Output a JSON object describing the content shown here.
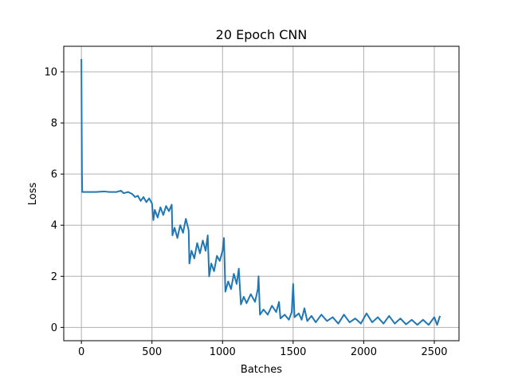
{
  "chart_data": {
    "type": "line",
    "title": "20 Epoch CNN",
    "xlabel": "Batches",
    "ylabel": "Loss",
    "xlim": [
      -125,
      2675
    ],
    "ylim": [
      -0.52,
      11.0
    ],
    "xticks": [
      0,
      500,
      1000,
      1500,
      2000,
      2500
    ],
    "yticks": [
      0,
      2,
      4,
      6,
      8,
      10
    ],
    "grid": true,
    "series_color": "#1f77b4",
    "series": [
      {
        "points": [
          [
            0,
            10.5
          ],
          [
            2,
            8.0
          ],
          [
            4,
            6.0
          ],
          [
            6,
            5.3
          ],
          [
            50,
            5.3
          ],
          [
            100,
            5.3
          ],
          [
            160,
            5.32
          ],
          [
            200,
            5.3
          ],
          [
            250,
            5.3
          ],
          [
            280,
            5.35
          ],
          [
            300,
            5.25
          ],
          [
            330,
            5.3
          ],
          [
            360,
            5.22
          ],
          [
            380,
            5.1
          ],
          [
            400,
            5.15
          ],
          [
            420,
            4.95
          ],
          [
            440,
            5.1
          ],
          [
            460,
            4.9
          ],
          [
            480,
            5.05
          ],
          [
            500,
            4.85
          ],
          [
            510,
            4.2
          ],
          [
            520,
            4.6
          ],
          [
            540,
            4.3
          ],
          [
            560,
            4.7
          ],
          [
            580,
            4.4
          ],
          [
            600,
            4.75
          ],
          [
            620,
            4.55
          ],
          [
            640,
            4.8
          ],
          [
            645,
            3.6
          ],
          [
            660,
            3.9
          ],
          [
            680,
            3.5
          ],
          [
            700,
            4.0
          ],
          [
            720,
            3.7
          ],
          [
            740,
            4.25
          ],
          [
            760,
            3.8
          ],
          [
            765,
            2.5
          ],
          [
            780,
            3.0
          ],
          [
            800,
            2.7
          ],
          [
            820,
            3.3
          ],
          [
            840,
            2.9
          ],
          [
            860,
            3.4
          ],
          [
            880,
            3.0
          ],
          [
            895,
            3.6
          ],
          [
            905,
            2.0
          ],
          [
            920,
            2.5
          ],
          [
            940,
            2.2
          ],
          [
            960,
            2.8
          ],
          [
            980,
            2.6
          ],
          [
            1000,
            3.0
          ],
          [
            1010,
            3.5
          ],
          [
            1020,
            1.4
          ],
          [
            1040,
            1.8
          ],
          [
            1060,
            1.5
          ],
          [
            1080,
            2.1
          ],
          [
            1100,
            1.7
          ],
          [
            1115,
            2.3
          ],
          [
            1130,
            0.9
          ],
          [
            1150,
            1.2
          ],
          [
            1170,
            0.95
          ],
          [
            1200,
            1.3
          ],
          [
            1230,
            1.0
          ],
          [
            1250,
            1.5
          ],
          [
            1255,
            2.0
          ],
          [
            1265,
            0.5
          ],
          [
            1290,
            0.7
          ],
          [
            1320,
            0.5
          ],
          [
            1350,
            0.85
          ],
          [
            1380,
            0.6
          ],
          [
            1400,
            1.0
          ],
          [
            1410,
            0.35
          ],
          [
            1440,
            0.5
          ],
          [
            1470,
            0.3
          ],
          [
            1490,
            0.6
          ],
          [
            1500,
            1.7
          ],
          [
            1510,
            0.4
          ],
          [
            1540,
            0.55
          ],
          [
            1560,
            0.3
          ],
          [
            1580,
            0.75
          ],
          [
            1600,
            0.25
          ],
          [
            1630,
            0.45
          ],
          [
            1660,
            0.2
          ],
          [
            1700,
            0.5
          ],
          [
            1740,
            0.25
          ],
          [
            1780,
            0.4
          ],
          [
            1820,
            0.15
          ],
          [
            1860,
            0.5
          ],
          [
            1900,
            0.2
          ],
          [
            1940,
            0.35
          ],
          [
            1980,
            0.15
          ],
          [
            2020,
            0.55
          ],
          [
            2060,
            0.2
          ],
          [
            2100,
            0.4
          ],
          [
            2140,
            0.15
          ],
          [
            2180,
            0.45
          ],
          [
            2220,
            0.15
          ],
          [
            2260,
            0.35
          ],
          [
            2300,
            0.12
          ],
          [
            2340,
            0.3
          ],
          [
            2380,
            0.1
          ],
          [
            2420,
            0.3
          ],
          [
            2460,
            0.1
          ],
          [
            2500,
            0.4
          ],
          [
            2520,
            0.1
          ],
          [
            2540,
            0.45
          ]
        ]
      }
    ]
  }
}
